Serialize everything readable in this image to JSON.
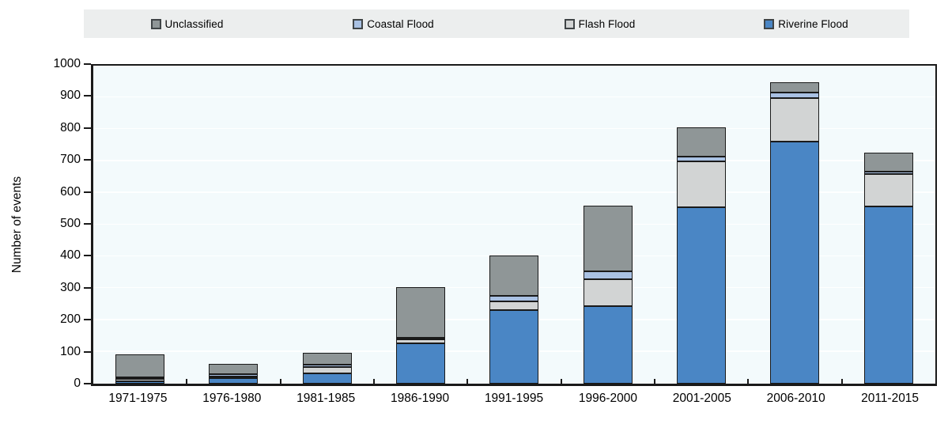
{
  "legend": {
    "background": "#eceeee",
    "items": [
      {
        "label": "Unclassified",
        "color": "#8f9697",
        "icon": "legend-swatch-square"
      },
      {
        "label": "Coastal Flood",
        "color": "#a9c1e3",
        "icon": "legend-swatch-square"
      },
      {
        "label": "Flash Flood",
        "color": "#d2d4d4",
        "icon": "legend-swatch-square"
      },
      {
        "label": "Riverine Flood",
        "color": "#4a86c5",
        "icon": "legend-swatch-square"
      }
    ]
  },
  "chart_data": {
    "type": "bar",
    "stacked": true,
    "title": "",
    "xlabel": "",
    "ylabel": "Number of events",
    "ylim": [
      0,
      1000
    ],
    "yticks": [
      0,
      100,
      200,
      300,
      400,
      500,
      600,
      700,
      800,
      900,
      1000
    ],
    "grid": true,
    "legend_position": "top",
    "categories": [
      "1971-1975",
      "1976-1980",
      "1981-1985",
      "1986-1990",
      "1991-1995",
      "1996-2000",
      "2001-2005",
      "2006-2010",
      "2011-2015"
    ],
    "stack_order": "bottom-to-top",
    "series": [
      {
        "name": "Riverine Flood",
        "color": "#4a86c5",
        "values": [
          8,
          17,
          33,
          127,
          232,
          243,
          555,
          760,
          557
        ]
      },
      {
        "name": "Flash Flood",
        "color": "#d2d4d4",
        "values": [
          3,
          3,
          20,
          12,
          28,
          85,
          145,
          138,
          103
        ]
      },
      {
        "name": "Coastal Flood",
        "color": "#a9c1e3",
        "values": [
          2,
          2,
          3,
          3,
          15,
          25,
          15,
          17,
          3
        ]
      },
      {
        "name": "Unclassified",
        "color": "#8f9697",
        "values": [
          72,
          33,
          39,
          158,
          128,
          207,
          91,
          32,
          60
        ]
      }
    ],
    "totals": [
      85,
      55,
      95,
      300,
      403,
      560,
      806,
      947,
      723
    ]
  },
  "colors": {
    "plot_background": "#f3fafc",
    "axis": "#1a1a1a",
    "gridline": "#ffffff",
    "segment_border": "#1a1a1a",
    "text": "#000000"
  }
}
